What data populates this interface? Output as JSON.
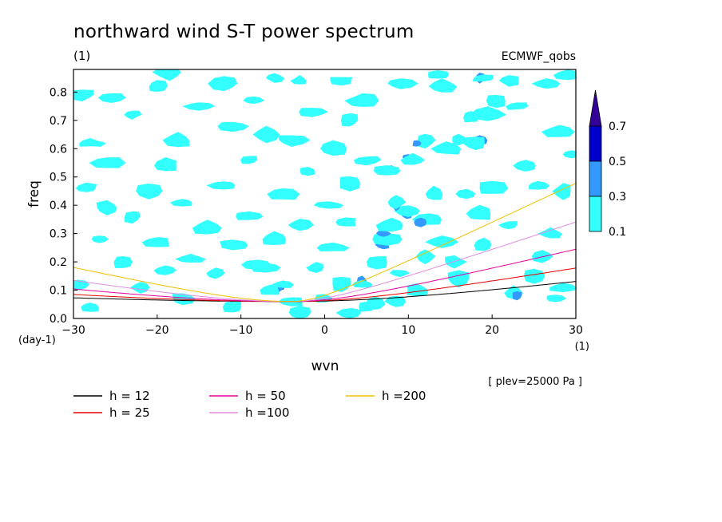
{
  "header": {
    "title": "northward wind S-T power spectrum",
    "title_units": "(1)",
    "model_label": "ECMWF_qobs",
    "plev_label": "[ plev=25000 Pa ]"
  },
  "chart_data": {
    "type": "heatmap",
    "title": "northward wind S-T power spectrum",
    "xlabel": "wvn",
    "xunits": "(1)",
    "ylabel": "freq",
    "yunits": "(day-1)",
    "xlim": [
      -30,
      30
    ],
    "ylim": [
      0,
      0.88
    ],
    "xticks": [
      -30,
      -20,
      -10,
      0,
      10,
      20,
      30
    ],
    "yticks": [
      0.0,
      0.1,
      0.2,
      0.3,
      0.4,
      0.5,
      0.6,
      0.7,
      0.8
    ],
    "grid": false,
    "colorbar": {
      "levels": [
        0.1,
        0.3,
        0.5,
        0.7
      ],
      "colors": [
        "#33ffff",
        "#3399ff",
        "#0000cc",
        "#330099"
      ],
      "extend": "max"
    },
    "contour_patches": [
      {
        "x": -5.2,
        "y": 0.11,
        "level": 3
      },
      {
        "x": -5.5,
        "y": 0.11,
        "level": 2
      },
      {
        "x": -5.0,
        "y": 0.12,
        "level": 1
      },
      {
        "x": -4.0,
        "y": 0.06,
        "level": 1
      },
      {
        "x": -6.5,
        "y": 0.1,
        "level": 1
      },
      {
        "x": -3.0,
        "y": 0.02,
        "level": 1
      },
      {
        "x": -7.0,
        "y": 0.18,
        "level": 1
      },
      {
        "x": -8.0,
        "y": 0.19,
        "level": 1
      },
      {
        "x": 5.5,
        "y": 0.04,
        "level": 2
      },
      {
        "x": 5.0,
        "y": 0.04,
        "level": 1
      },
      {
        "x": 6.0,
        "y": 0.05,
        "level": 1
      },
      {
        "x": 4.5,
        "y": 0.13,
        "level": 2
      },
      {
        "x": 4.5,
        "y": 0.12,
        "level": 1
      },
      {
        "x": 6.0,
        "y": 0.21,
        "level": 2
      },
      {
        "x": 6.2,
        "y": 0.2,
        "level": 1
      },
      {
        "x": 7.2,
        "y": 0.27,
        "level": 3
      },
      {
        "x": 7.0,
        "y": 0.26,
        "level": 2
      },
      {
        "x": 7.5,
        "y": 0.28,
        "level": 1
      },
      {
        "x": 7.0,
        "y": 0.3,
        "level": 2
      },
      {
        "x": 8.0,
        "y": 0.33,
        "level": 1
      },
      {
        "x": 10.3,
        "y": 0.38,
        "level": 3
      },
      {
        "x": 9.8,
        "y": 0.37,
        "level": 2
      },
      {
        "x": 10.0,
        "y": 0.38,
        "level": 1
      },
      {
        "x": 8.5,
        "y": 0.4,
        "level": 2
      },
      {
        "x": 8.5,
        "y": 0.41,
        "level": 1
      },
      {
        "x": 13.5,
        "y": 0.44,
        "level": 3
      },
      {
        "x": 13.0,
        "y": 0.44,
        "level": 1
      },
      {
        "x": 12.5,
        "y": 0.35,
        "level": 1
      },
      {
        "x": 11.5,
        "y": 0.34,
        "level": 2
      },
      {
        "x": 8.0,
        "y": 0.53,
        "level": 2
      },
      {
        "x": 7.5,
        "y": 0.52,
        "level": 1
      },
      {
        "x": 10.0,
        "y": 0.57,
        "level": 2
      },
      {
        "x": 10.5,
        "y": 0.56,
        "level": 1
      },
      {
        "x": 14.0,
        "y": 0.6,
        "level": 2
      },
      {
        "x": 14.5,
        "y": 0.6,
        "level": 1
      },
      {
        "x": 12.0,
        "y": 0.63,
        "level": 1
      },
      {
        "x": 11.0,
        "y": 0.62,
        "level": 2
      },
      {
        "x": 18.0,
        "y": 0.62,
        "level": 3
      },
      {
        "x": 18.5,
        "y": 0.63,
        "level": 2
      },
      {
        "x": 18.0,
        "y": 0.62,
        "level": 1
      },
      {
        "x": 16.0,
        "y": 0.63,
        "level": 1
      },
      {
        "x": 17.5,
        "y": 0.71,
        "level": 1
      },
      {
        "x": 19.5,
        "y": 0.72,
        "level": 1
      },
      {
        "x": 20.5,
        "y": 0.77,
        "level": 1
      },
      {
        "x": 23.0,
        "y": 0.75,
        "level": 1
      },
      {
        "x": 18.5,
        "y": 0.85,
        "level": 2
      },
      {
        "x": 19.0,
        "y": 0.85,
        "level": 1
      },
      {
        "x": 13.5,
        "y": 0.86,
        "level": 1
      },
      {
        "x": 9.0,
        "y": 0.83,
        "level": 1
      },
      {
        "x": 14.0,
        "y": 0.82,
        "level": 1
      },
      {
        "x": 22.0,
        "y": 0.84,
        "level": 1
      },
      {
        "x": 29.0,
        "y": 0.86,
        "level": 1
      },
      {
        "x": 28.0,
        "y": 0.66,
        "level": 1
      },
      {
        "x": 29.5,
        "y": 0.58,
        "level": 1
      },
      {
        "x": 27.5,
        "y": 0.07,
        "level": 1
      },
      {
        "x": 22.5,
        "y": 0.09,
        "level": 1
      },
      {
        "x": 23.0,
        "y": 0.08,
        "level": 2
      },
      {
        "x": 25.0,
        "y": 0.15,
        "level": 1
      },
      {
        "x": 28.5,
        "y": 0.11,
        "level": 1
      },
      {
        "x": 16.0,
        "y": 0.14,
        "level": 1
      },
      {
        "x": 15.5,
        "y": 0.2,
        "level": 1
      },
      {
        "x": 19.0,
        "y": 0.26,
        "level": 1
      },
      {
        "x": 22.0,
        "y": 0.33,
        "level": 1
      },
      {
        "x": 27.0,
        "y": 0.3,
        "level": 1
      },
      {
        "x": 25.5,
        "y": 0.47,
        "level": 1
      },
      {
        "x": 20.0,
        "y": 0.46,
        "level": 1
      },
      {
        "x": 18.5,
        "y": 0.37,
        "level": 1
      },
      {
        "x": 17.0,
        "y": 0.44,
        "level": 1
      },
      {
        "x": 14.0,
        "y": 0.27,
        "level": 1
      },
      {
        "x": 12.0,
        "y": 0.22,
        "level": 1
      },
      {
        "x": 11.0,
        "y": 0.1,
        "level": 1
      },
      {
        "x": 9.0,
        "y": 0.16,
        "level": 1
      },
      {
        "x": 8.5,
        "y": 0.06,
        "level": 1
      },
      {
        "x": 3.0,
        "y": 0.02,
        "level": 1
      },
      {
        "x": 2.0,
        "y": 0.12,
        "level": 1
      },
      {
        "x": 1.0,
        "y": 0.25,
        "level": 1
      },
      {
        "x": 2.5,
        "y": 0.34,
        "level": 1
      },
      {
        "x": 0.5,
        "y": 0.4,
        "level": 1
      },
      {
        "x": 3.0,
        "y": 0.48,
        "level": 1
      },
      {
        "x": 5.0,
        "y": 0.56,
        "level": 1
      },
      {
        "x": 1.0,
        "y": 0.6,
        "level": 1
      },
      {
        "x": 3.0,
        "y": 0.7,
        "level": 1
      },
      {
        "x": 4.5,
        "y": 0.77,
        "level": 1
      },
      {
        "x": 2.0,
        "y": 0.84,
        "level": 1
      },
      {
        "x": -3.0,
        "y": 0.84,
        "level": 1
      },
      {
        "x": -1.5,
        "y": 0.73,
        "level": 1
      },
      {
        "x": -4.0,
        "y": 0.63,
        "level": 1
      },
      {
        "x": -2.0,
        "y": 0.52,
        "level": 1
      },
      {
        "x": -5.0,
        "y": 0.44,
        "level": 1
      },
      {
        "x": -3.0,
        "y": 0.33,
        "level": 1
      },
      {
        "x": -6.0,
        "y": 0.28,
        "level": 1
      },
      {
        "x": -9.0,
        "y": 0.36,
        "level": 1
      },
      {
        "x": -11.0,
        "y": 0.26,
        "level": 1
      },
      {
        "x": -13.0,
        "y": 0.16,
        "level": 1
      },
      {
        "x": -16.0,
        "y": 0.21,
        "level": 1
      },
      {
        "x": -14.0,
        "y": 0.32,
        "level": 1
      },
      {
        "x": -17.0,
        "y": 0.41,
        "level": 1
      },
      {
        "x": -12.0,
        "y": 0.47,
        "level": 1
      },
      {
        "x": -9.0,
        "y": 0.56,
        "level": 1
      },
      {
        "x": -7.0,
        "y": 0.65,
        "level": 1
      },
      {
        "x": -11.0,
        "y": 0.68,
        "level": 1
      },
      {
        "x": -8.5,
        "y": 0.77,
        "level": 1
      },
      {
        "x": -6.0,
        "y": 0.85,
        "level": 1
      },
      {
        "x": -12.0,
        "y": 0.83,
        "level": 1
      },
      {
        "x": -15.0,
        "y": 0.75,
        "level": 1
      },
      {
        "x": -17.5,
        "y": 0.63,
        "level": 1
      },
      {
        "x": -19.0,
        "y": 0.54,
        "level": 1
      },
      {
        "x": -21.0,
        "y": 0.45,
        "level": 1
      },
      {
        "x": -23.0,
        "y": 0.36,
        "level": 1
      },
      {
        "x": -20.0,
        "y": 0.27,
        "level": 1
      },
      {
        "x": -24.0,
        "y": 0.2,
        "level": 1
      },
      {
        "x": -27.0,
        "y": 0.28,
        "level": 1
      },
      {
        "x": -26.0,
        "y": 0.39,
        "level": 1
      },
      {
        "x": -28.5,
        "y": 0.46,
        "level": 1
      },
      {
        "x": -26.0,
        "y": 0.55,
        "level": 1
      },
      {
        "x": -28.0,
        "y": 0.62,
        "level": 1
      },
      {
        "x": -23.0,
        "y": 0.72,
        "level": 1
      },
      {
        "x": -25.5,
        "y": 0.78,
        "level": 1
      },
      {
        "x": -29.0,
        "y": 0.79,
        "level": 1
      },
      {
        "x": -20.0,
        "y": 0.82,
        "level": 1
      },
      {
        "x": -18.5,
        "y": 0.87,
        "level": 1
      },
      {
        "x": -29.5,
        "y": 0.12,
        "level": 1
      },
      {
        "x": -28.0,
        "y": 0.04,
        "level": 1
      },
      {
        "x": -22.0,
        "y": 0.11,
        "level": 1
      },
      {
        "x": -17.0,
        "y": 0.07,
        "level": 1
      },
      {
        "x": -11.0,
        "y": 0.04,
        "level": 1
      },
      {
        "x": -1.0,
        "y": 0.18,
        "level": 1
      },
      {
        "x": -19.0,
        "y": 0.17,
        "level": 1
      },
      {
        "x": 26.0,
        "y": 0.22,
        "level": 1
      },
      {
        "x": 24.0,
        "y": 0.54,
        "level": 1
      },
      {
        "x": 28.5,
        "y": 0.45,
        "level": 1
      },
      {
        "x": 26.5,
        "y": 0.83,
        "level": 1
      },
      {
        "x": 0.0,
        "y": 0.07,
        "level": 1
      }
    ],
    "series": [
      {
        "name": "h = 12",
        "color": "#000000",
        "h": 12
      },
      {
        "name": "h = 25",
        "color": "#e60000",
        "h": 25
      },
      {
        "name": "h = 50",
        "color": "#e600a0",
        "h": 50
      },
      {
        "name": "h =100",
        "color": "#e08ce0",
        "h": 100
      },
      {
        "name": "h =200",
        "color": "#f0c000",
        "h": 200
      }
    ]
  }
}
